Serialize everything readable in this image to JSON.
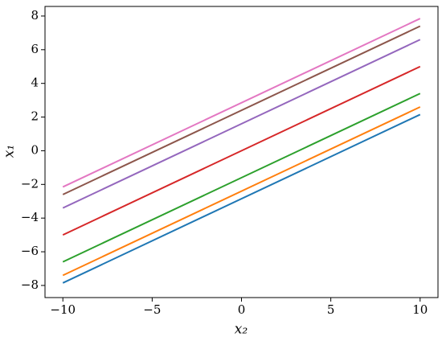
{
  "chart_data": {
    "type": "line",
    "xlabel": "x₂",
    "ylabel": "x₁",
    "x": [
      -10,
      10
    ],
    "series": [
      {
        "color": "#1f77b4",
        "values": [
          -7.85,
          2.15
        ]
      },
      {
        "color": "#ff7f0e",
        "values": [
          -7.4,
          2.6
        ]
      },
      {
        "color": "#2ca02c",
        "values": [
          -6.6,
          3.4
        ]
      },
      {
        "color": "#d62728",
        "values": [
          -5,
          5
        ]
      },
      {
        "color": "#9467bd",
        "values": [
          -3.4,
          6.6
        ]
      },
      {
        "color": "#8c564b",
        "values": [
          -2.6,
          7.4
        ]
      },
      {
        "color": "#e377c2",
        "values": [
          -2.15,
          7.85
        ]
      }
    ],
    "xlim": [
      -11,
      11
    ],
    "xticks": [
      {
        "value": -10,
        "label": "−10"
      },
      {
        "value": -5,
        "label": "−5"
      },
      0,
      5,
      10
    ],
    "ylim": [
      -8.72,
      8.57
    ],
    "yticks": [
      {
        "value": -8,
        "label": "−8"
      },
      {
        "value": -6,
        "label": "−6"
      },
      {
        "value": -4,
        "label": "−4"
      },
      {
        "value": -2,
        "label": "−2"
      },
      0,
      2,
      4,
      6,
      8
    ],
    "grid": false
  }
}
